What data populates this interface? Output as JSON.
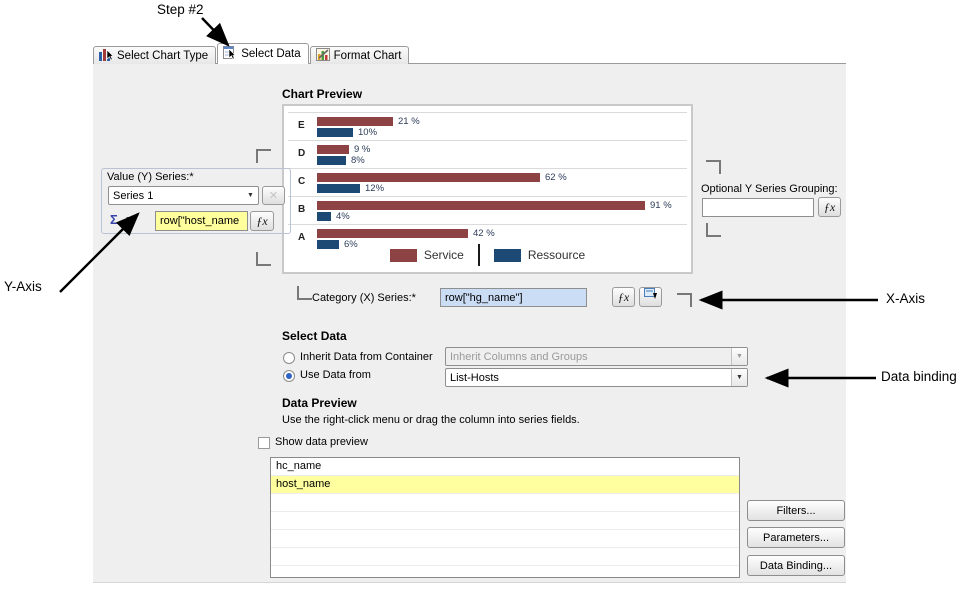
{
  "annotations": {
    "step2": "Step #2",
    "y_axis": "Y-Axis",
    "x_axis": "X-Axis",
    "data_binding": "Data binding"
  },
  "tabs": [
    {
      "label": "Select Chart Type"
    },
    {
      "label": "Select Data"
    },
    {
      "label": "Format Chart"
    }
  ],
  "active_tab": "Select Data",
  "icons": {
    "dropdown_arrow": "▼",
    "sigma": "Σ",
    "fx": "ƒx",
    "remove": "✕"
  },
  "chart_preview": {
    "title": "Chart Preview"
  },
  "y_series": {
    "label": "Value (Y) Series:*",
    "selected_series": "Series 1",
    "expression": "row[\"host_name"
  },
  "optional_grouping": {
    "label": "Optional Y Series Grouping:",
    "value": ""
  },
  "x_series": {
    "label": "Category (X) Series:*",
    "value": "row[\"hg_name\"]"
  },
  "select_data": {
    "heading": "Select Data",
    "inherit_radio_label": "Inherit Data from Container",
    "inherit_dropdown_value": "Inherit Columns and Groups",
    "use_radio_label": "Use Data from",
    "use_dropdown_value": "List-Hosts"
  },
  "data_preview": {
    "heading": "Data Preview",
    "hint": "Use the right-click menu or drag the column into series fields.",
    "show_checkbox_label": "Show data preview",
    "columns": [
      "hc_name",
      "host_name"
    ],
    "highlighted_column": "host_name",
    "total_rows": 7
  },
  "action_buttons": [
    "Filters...",
    "Parameters...",
    "Data Binding..."
  ],
  "chart_data": {
    "type": "bar",
    "orientation": "horizontal",
    "title": "Chart Preview",
    "categories": [
      "E",
      "D",
      "C",
      "B",
      "A"
    ],
    "series": [
      {
        "name": "Service",
        "color": "#8d4344",
        "values": [
          21,
          9,
          62,
          91,
          42
        ],
        "labels": [
          "21 %",
          "9 %",
          "62 %",
          "91 %",
          "42 %"
        ]
      },
      {
        "name": "Ressource",
        "color": "#1c4a74",
        "values": [
          10,
          8,
          12,
          4,
          6
        ],
        "labels": [
          "10%",
          "8%",
          "12%",
          "4%",
          "6%"
        ]
      }
    ],
    "xlim": [
      0,
      100
    ],
    "value_unit": "%",
    "grid": "horizontal-separators",
    "legend_position": "bottom"
  }
}
